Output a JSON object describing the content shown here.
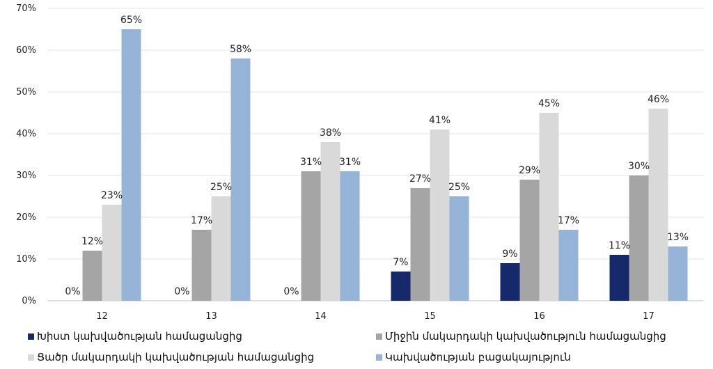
{
  "chart_data": {
    "type": "bar",
    "categories": [
      "12",
      "13",
      "14",
      "15",
      "16",
      "17"
    ],
    "ylim": [
      0,
      70
    ],
    "yticks": [
      "0%",
      "10%",
      "20%",
      "30%",
      "40%",
      "50%",
      "60%",
      "70%"
    ],
    "grid": true,
    "legend_position": "bottom",
    "series": [
      {
        "name": "Խիստ կախվածության համացանցից",
        "color": "#15296b",
        "values": [
          0,
          0,
          0,
          7,
          9,
          11
        ],
        "labels": [
          "0%",
          "0%",
          "0%",
          "7%",
          "9%",
          "11%"
        ]
      },
      {
        "name": "Միջին մակարդակի կախվածություն համացանցից",
        "color": "#a5a5a5",
        "values": [
          12,
          17,
          31,
          27,
          29,
          30
        ],
        "labels": [
          "12%",
          "17%",
          "31%",
          "27%",
          "29%",
          "30%"
        ]
      },
      {
        "name": "Ցածր մակարդակի կախվածության համացանցից",
        "color": "#d9d9d9",
        "values": [
          23,
          25,
          38,
          41,
          45,
          46
        ],
        "labels": [
          "23%",
          "25%",
          "38%",
          "41%",
          "45%",
          "46%"
        ]
      },
      {
        "name": "Կախվածության բացակայություն",
        "color": "#96b4d8",
        "values": [
          65,
          58,
          31,
          25,
          17,
          13
        ],
        "labels": [
          "65%",
          "58%",
          "31%",
          "25%",
          "17%",
          "13%"
        ]
      }
    ]
  }
}
